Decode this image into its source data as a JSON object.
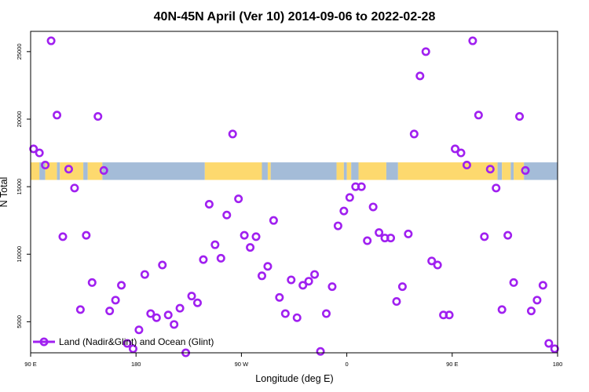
{
  "chart_data": {
    "type": "scatter",
    "title": "40N-45N April (Ver 10)   2014-09-06 to 2022-02-28",
    "xlabel": "Longitude (deg E)",
    "ylabel": "N Total",
    "xlim": [
      90,
      450
    ],
    "ylim": [
      2700,
      26500
    ],
    "x_ticks": [
      {
        "value": 90,
        "label": "90 E"
      },
      {
        "value": 162,
        "label": "180"
      },
      {
        "value": 234,
        "label": "90 W"
      },
      {
        "value": 306,
        "label": "0"
      },
      {
        "value": 378,
        "label": "90 E"
      },
      {
        "value": 450,
        "label": "180"
      }
    ],
    "y_ticks": [
      {
        "value": 5000,
        "label": "5000"
      },
      {
        "value": 10000,
        "label": "10000"
      },
      {
        "value": 15000,
        "label": "15000"
      },
      {
        "value": 20000,
        "label": "20000"
      },
      {
        "value": 25000,
        "label": "25000"
      }
    ],
    "series": [
      {
        "name": "Land (Nadir&Glint) and Ocean (Glint)",
        "color": "#a020f0",
        "marker": "open-circle",
        "x": [
          92,
          96,
          100,
          104,
          108,
          112,
          116,
          120,
          124,
          128,
          132,
          136,
          140,
          144,
          148,
          152,
          156,
          160,
          164,
          168,
          172,
          176,
          180,
          184,
          188,
          192,
          196,
          200,
          204,
          208,
          212,
          216,
          220,
          224,
          228,
          232,
          236,
          240,
          244,
          248,
          252,
          256,
          260,
          264,
          268,
          272,
          276,
          280,
          284,
          288,
          292,
          296,
          300,
          304,
          308,
          312,
          316,
          320,
          324,
          328,
          332,
          336,
          340,
          344,
          348,
          352,
          356,
          360,
          364,
          368,
          372,
          376,
          380,
          384,
          388,
          392,
          396,
          400,
          404,
          408,
          412,
          416,
          420,
          424,
          428,
          432,
          436,
          440,
          444,
          448
        ],
        "y": [
          17800,
          17500,
          16600,
          25800,
          20300,
          11300,
          16300,
          14900,
          5900,
          11400,
          7900,
          20200,
          16200,
          5800,
          6600,
          7700,
          3400,
          3000,
          4400,
          8500,
          5600,
          5300,
          9200,
          5500,
          4800,
          6000,
          2700,
          6900,
          6400,
          9600,
          13700,
          10700,
          9700,
          12900,
          18900,
          14100,
          11400,
          10500,
          11300,
          8400,
          9100,
          12500,
          6800,
          5600,
          8100,
          5300,
          7700,
          8000,
          8500,
          2800,
          5600,
          7600,
          12100,
          13200,
          14200,
          15000,
          15000,
          11000,
          13500,
          11600,
          11200,
          11200,
          6500,
          7600,
          11500,
          18900,
          23200,
          25000,
          9500,
          9200,
          5500,
          5500,
          17800,
          17500,
          16600,
          25800,
          20300,
          11300,
          16300,
          14900,
          5900,
          11400,
          7900,
          20200,
          16200,
          5800,
          6600,
          7700,
          3400,
          3000
        ]
      }
    ],
    "legend": {
      "placement": "bottom-left",
      "entries": [
        "Land (Nadir&Glint) and Ocean (Glint)"
      ]
    },
    "landmask_band": {
      "description": "land/ocean coverage strip",
      "y_range": [
        15500,
        16800
      ],
      "colors": {
        "ocean": "#a4bcd8",
        "land": "#fdd96e"
      },
      "segments": [
        {
          "x0": 90,
          "x1": 96,
          "type": "land"
        },
        {
          "x0": 96,
          "x1": 100,
          "type": "ocean"
        },
        {
          "x0": 100,
          "x1": 108,
          "type": "land"
        },
        {
          "x0": 108,
          "x1": 110,
          "type": "ocean"
        },
        {
          "x0": 110,
          "x1": 126,
          "type": "land"
        },
        {
          "x0": 126,
          "x1": 129,
          "type": "ocean"
        },
        {
          "x0": 129,
          "x1": 139,
          "type": "land"
        },
        {
          "x0": 139,
          "x1": 209,
          "type": "ocean"
        },
        {
          "x0": 209,
          "x1": 248,
          "type": "land"
        },
        {
          "x0": 248,
          "x1": 252,
          "type": "ocean"
        },
        {
          "x0": 252,
          "x1": 254,
          "type": "land"
        },
        {
          "x0": 254,
          "x1": 299,
          "type": "ocean"
        },
        {
          "x0": 299,
          "x1": 304,
          "type": "land"
        },
        {
          "x0": 304,
          "x1": 306,
          "type": "ocean"
        },
        {
          "x0": 306,
          "x1": 309,
          "type": "land"
        },
        {
          "x0": 309,
          "x1": 314,
          "type": "ocean"
        },
        {
          "x0": 314,
          "x1": 333,
          "type": "land"
        },
        {
          "x0": 333,
          "x1": 341,
          "type": "ocean"
        },
        {
          "x0": 341,
          "x1": 409,
          "type": "land"
        },
        {
          "x0": 409,
          "x1": 412,
          "type": "ocean"
        },
        {
          "x0": 412,
          "x1": 418,
          "type": "land"
        },
        {
          "x0": 418,
          "x1": 420,
          "type": "ocean"
        },
        {
          "x0": 420,
          "x1": 427,
          "type": "land"
        },
        {
          "x0": 427,
          "x1": 450,
          "type": "ocean"
        }
      ]
    }
  }
}
